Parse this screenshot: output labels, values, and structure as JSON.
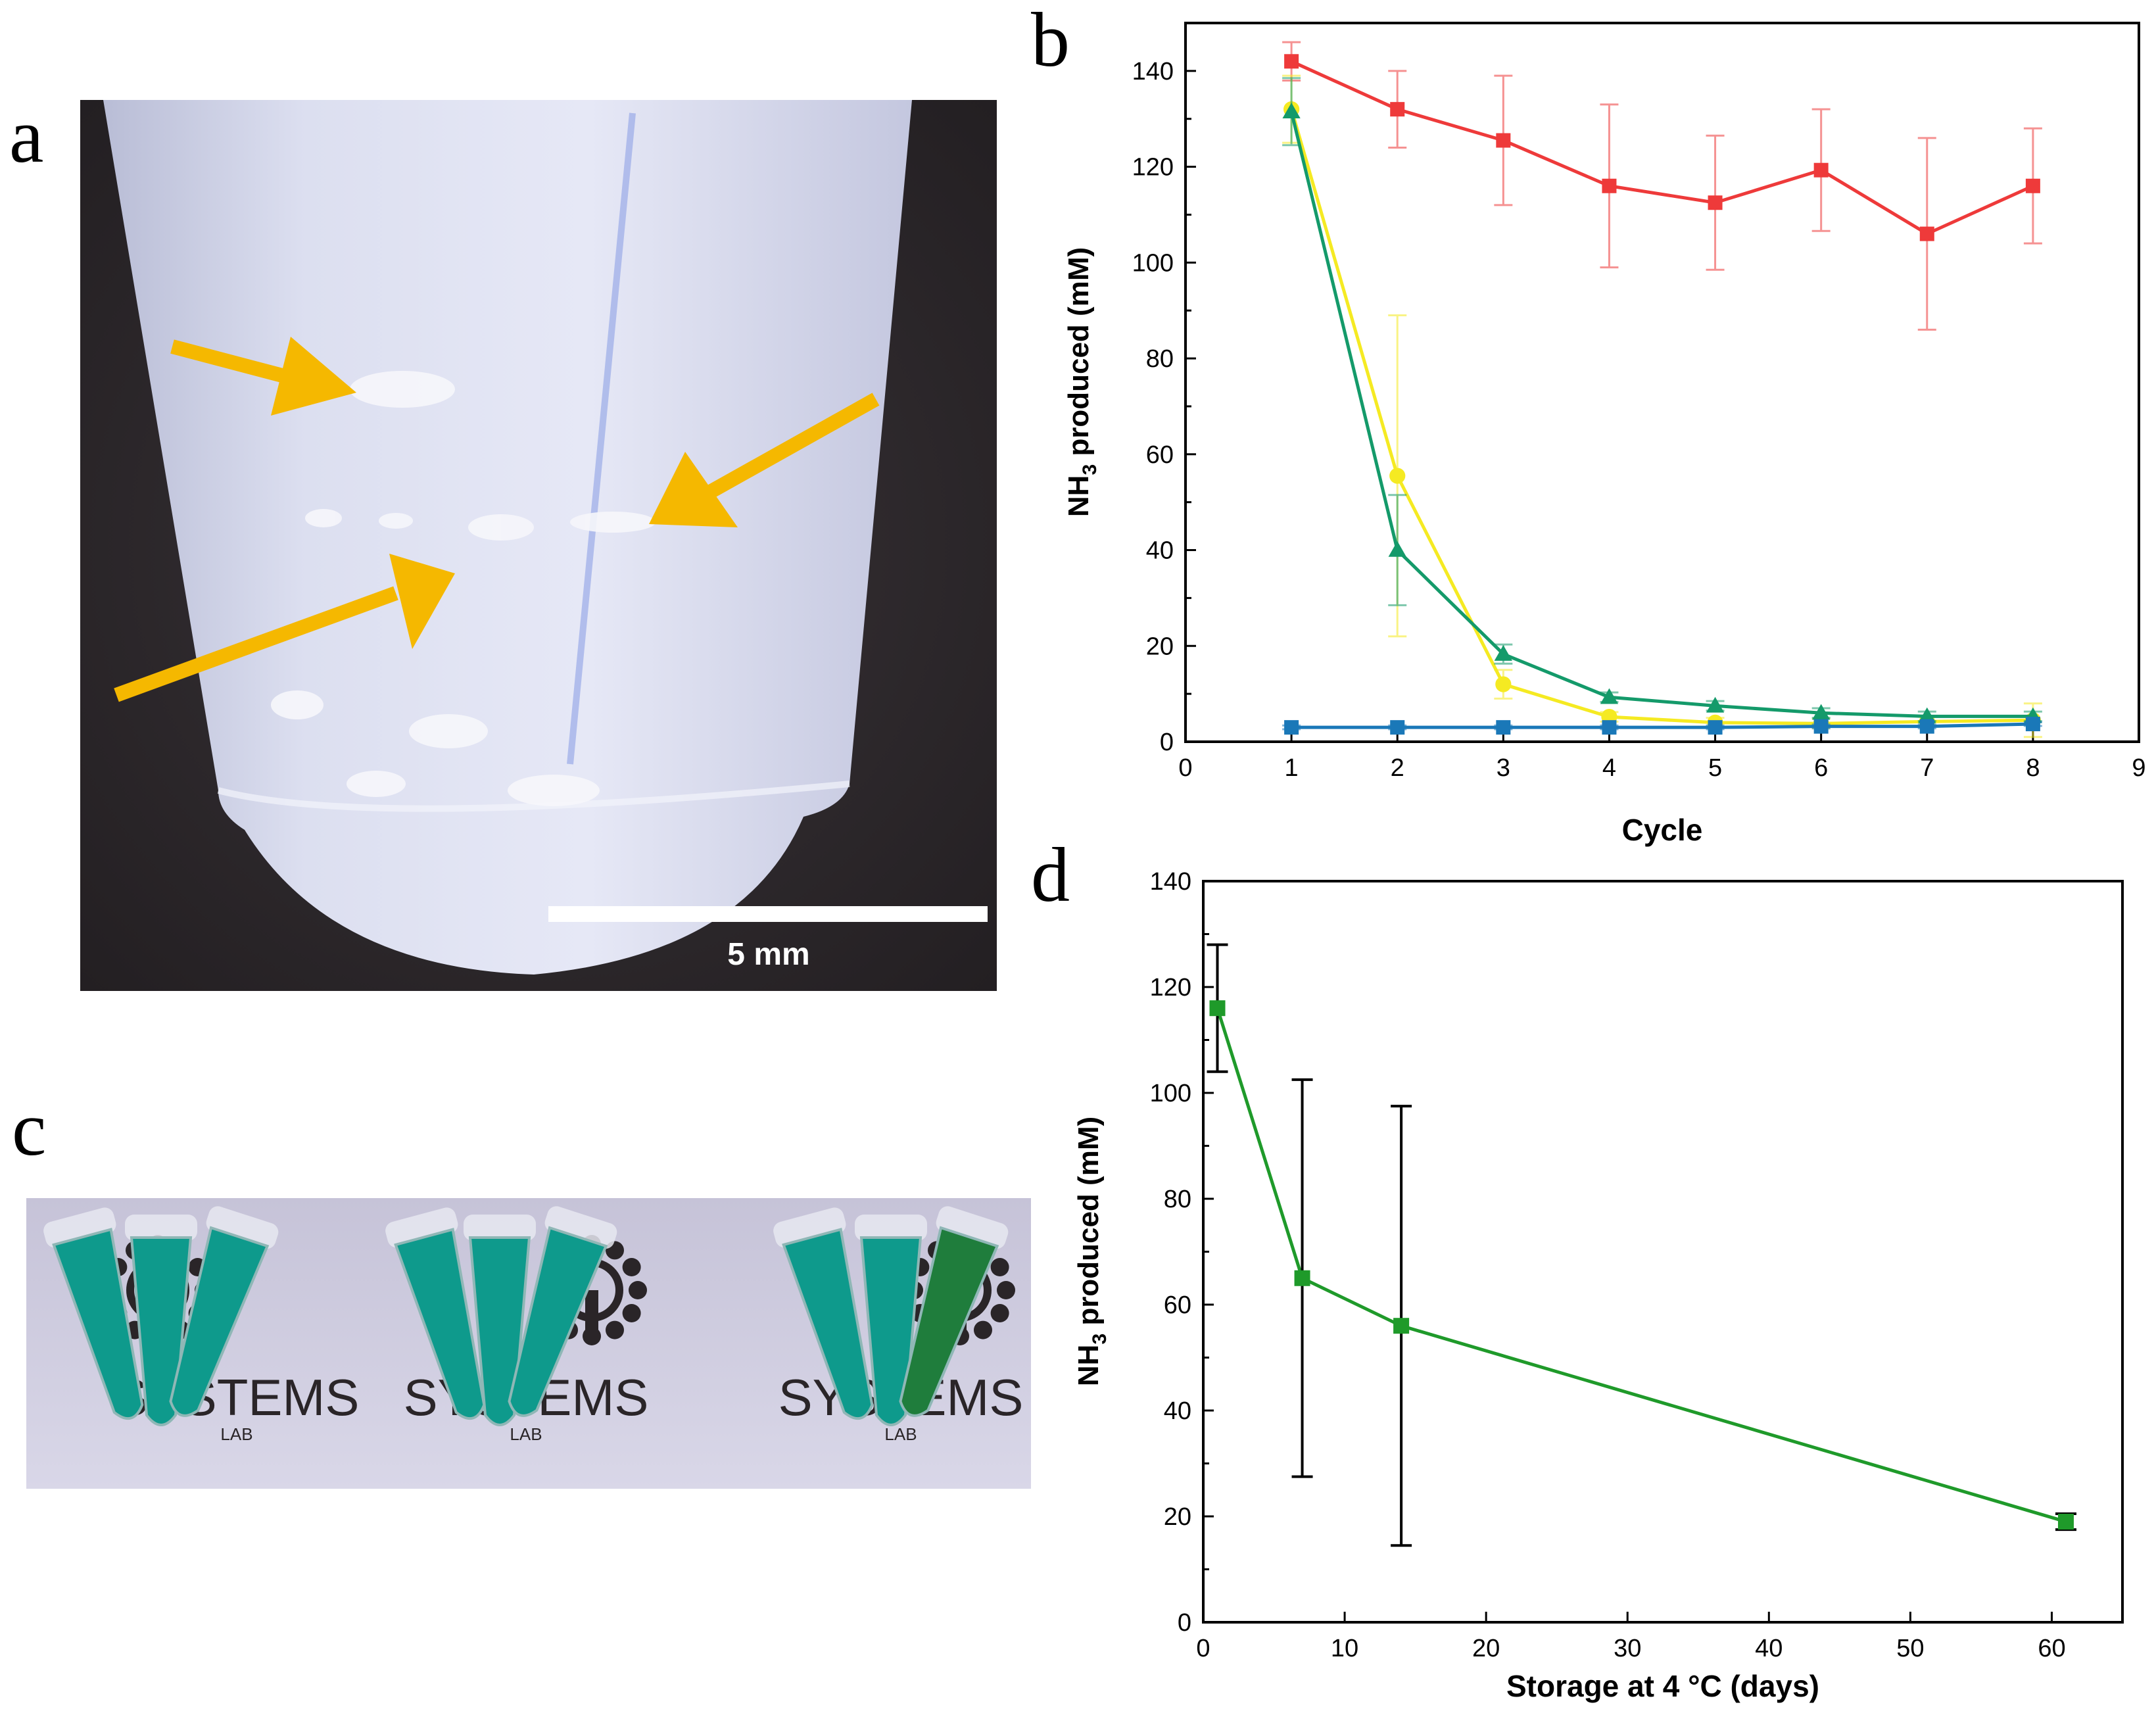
{
  "panels": {
    "a": {
      "letter": "a",
      "scale_bar_label": "5 mm"
    },
    "b": {
      "letter": "b"
    },
    "c": {
      "letter": "c",
      "logo_texts": [
        "SYSTEMS",
        "SYSTEMS",
        "SYSTEMS"
      ],
      "logo_subtexts": [
        "LAB",
        "LAB",
        "LAB"
      ],
      "tube_colors": [
        "#0e9a8c",
        "#0e9a8c",
        "#0e9a8c",
        "#0e9a8c",
        "#0e9a8c",
        "#0e9a8c",
        "#0e9a8c",
        "#0e9a8c",
        "#1f7d3c"
      ]
    },
    "d": {
      "letter": "d"
    }
  },
  "chart_data": [
    {
      "panel": "b",
      "type": "line",
      "title": "",
      "xlabel": "Cycle",
      "ylabel_main": "NH",
      "ylabel_sub": "3",
      "ylabel_rest": " produced (mM)",
      "xlim": [
        0,
        9
      ],
      "ylim": [
        0,
        150
      ],
      "x_ticks": [
        0,
        1,
        2,
        3,
        4,
        5,
        6,
        7,
        8,
        9
      ],
      "y_ticks": [
        0,
        20,
        40,
        60,
        80,
        100,
        120,
        140
      ],
      "x": [
        1,
        2,
        3,
        4,
        5,
        6,
        7,
        8
      ],
      "series": [
        {
          "color": "#ee3a3a",
          "marker": "square",
          "values": [
            142,
            132,
            125.5,
            116,
            112.5,
            119.3,
            106,
            116
          ],
          "errors": [
            4,
            8,
            13.5,
            17,
            14,
            12.7,
            20,
            12
          ]
        },
        {
          "color": "#f5ea22",
          "marker": "circle",
          "values": [
            132,
            55.5,
            12,
            5.2,
            4,
            3.8,
            4.2,
            4.5
          ],
          "errors": [
            7,
            33.5,
            3,
            1,
            1,
            1,
            1,
            3.5
          ]
        },
        {
          "color": "#149a6a",
          "marker": "triangle",
          "values": [
            131.5,
            40,
            18.3,
            9.3,
            7.5,
            6,
            5.3,
            5.3
          ],
          "errors": [
            7,
            11.5,
            2,
            1,
            1,
            1,
            1,
            1
          ]
        },
        {
          "color": "#1a78b8",
          "marker": "square",
          "values": [
            3,
            3,
            3,
            3,
            3,
            3.2,
            3.2,
            3.7
          ],
          "errors": [
            0.4,
            0.4,
            0.4,
            0.4,
            0.4,
            0.4,
            0.4,
            0.4
          ]
        }
      ]
    },
    {
      "panel": "d",
      "type": "line",
      "title": "",
      "xlabel": "Storage at 4 °C (days)",
      "ylabel_main": "NH",
      "ylabel_sub": "3",
      "ylabel_rest": " produced (mM)",
      "xlim": [
        0,
        65
      ],
      "ylim": [
        0,
        140
      ],
      "x_ticks": [
        0,
        10,
        20,
        30,
        40,
        50,
        60
      ],
      "y_ticks": [
        0,
        20,
        40,
        60,
        80,
        100,
        120,
        140
      ],
      "series": [
        {
          "color": "#1f9a2a",
          "marker": "square",
          "x": [
            1,
            7,
            14,
            61
          ],
          "values": [
            116,
            65,
            56,
            19
          ],
          "errors": [
            12,
            37.5,
            41.5,
            1.5
          ]
        }
      ]
    }
  ]
}
